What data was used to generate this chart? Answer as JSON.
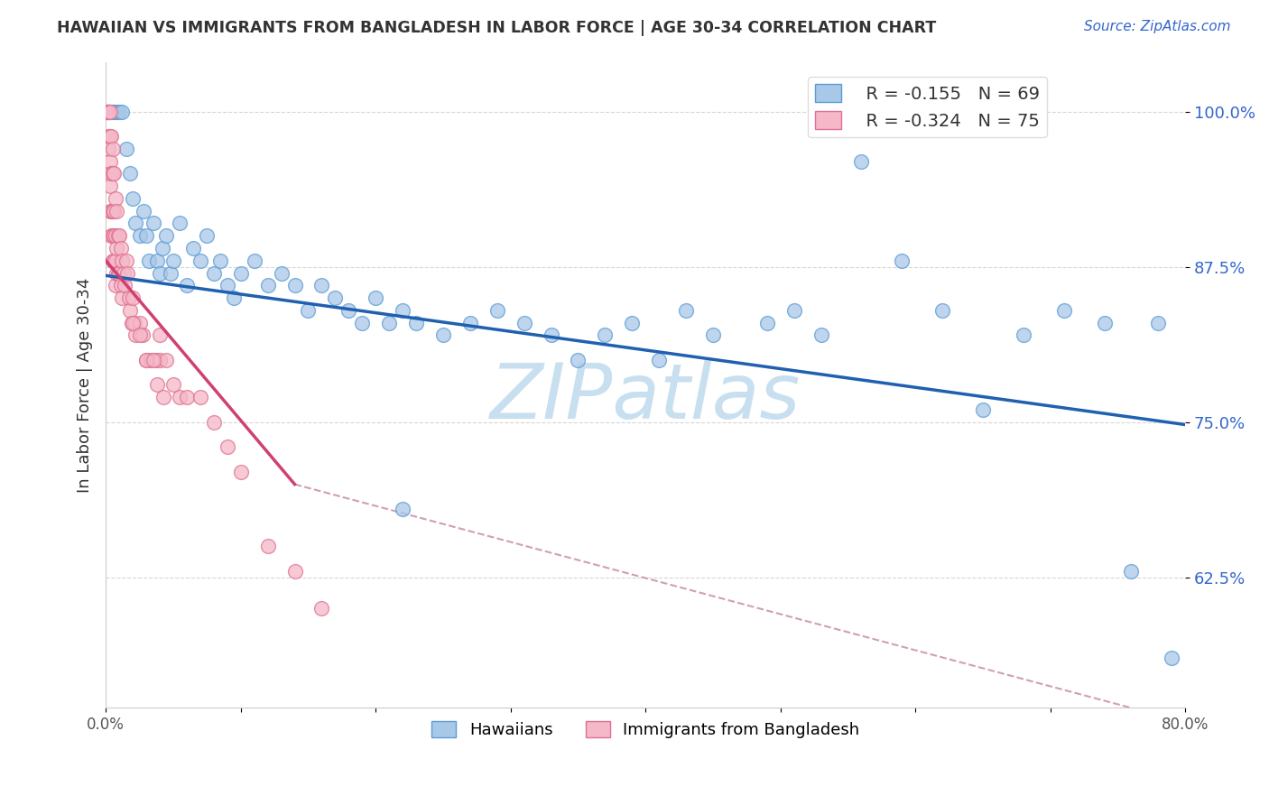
{
  "title": "HAWAIIAN VS IMMIGRANTS FROM BANGLADESH IN LABOR FORCE | AGE 30-34 CORRELATION CHART",
  "source_text": "Source: ZipAtlas.com",
  "ylabel": "In Labor Force | Age 30-34",
  "xlim": [
    0.0,
    0.8
  ],
  "ylim": [
    0.52,
    1.04
  ],
  "xticks": [
    0.0,
    0.1,
    0.2,
    0.3,
    0.4,
    0.5,
    0.6,
    0.7,
    0.8
  ],
  "xticklabels": [
    "0.0%",
    "",
    "",
    "",
    "",
    "",
    "",
    "",
    "80.0%"
  ],
  "yticks": [
    0.625,
    0.75,
    0.875,
    1.0
  ],
  "yticklabels": [
    "62.5%",
    "75.0%",
    "87.5%",
    "100.0%"
  ],
  "legend_r1": "R = -0.155",
  "legend_n1": "N = 69",
  "legend_r2": "R = -0.324",
  "legend_n2": "N = 75",
  "color_blue": "#a8c8e8",
  "color_pink": "#f4b8c8",
  "color_blue_edge": "#5b9bd5",
  "color_pink_edge": "#e07090",
  "color_blue_line": "#2060b0",
  "color_pink_line": "#d04070",
  "color_dashed": "#d0a0b0",
  "watermark": "ZIPatlas",
  "watermark_color": "#c8dff0",
  "blue_scatter_x": [
    0.003,
    0.005,
    0.006,
    0.008,
    0.01,
    0.012,
    0.015,
    0.018,
    0.02,
    0.022,
    0.025,
    0.028,
    0.03,
    0.032,
    0.035,
    0.038,
    0.04,
    0.042,
    0.045,
    0.048,
    0.05,
    0.055,
    0.06,
    0.065,
    0.07,
    0.075,
    0.08,
    0.085,
    0.09,
    0.095,
    0.1,
    0.11,
    0.12,
    0.13,
    0.14,
    0.15,
    0.16,
    0.17,
    0.18,
    0.19,
    0.2,
    0.21,
    0.22,
    0.23,
    0.25,
    0.27,
    0.29,
    0.31,
    0.33,
    0.35,
    0.37,
    0.39,
    0.41,
    0.43,
    0.45,
    0.49,
    0.51,
    0.53,
    0.56,
    0.59,
    0.62,
    0.65,
    0.68,
    0.71,
    0.74,
    0.76,
    0.78,
    0.79,
    0.22
  ],
  "blue_scatter_y": [
    1.0,
    1.0,
    1.0,
    1.0,
    1.0,
    1.0,
    0.97,
    0.95,
    0.93,
    0.91,
    0.9,
    0.92,
    0.9,
    0.88,
    0.91,
    0.88,
    0.87,
    0.89,
    0.9,
    0.87,
    0.88,
    0.91,
    0.86,
    0.89,
    0.88,
    0.9,
    0.87,
    0.88,
    0.86,
    0.85,
    0.87,
    0.88,
    0.86,
    0.87,
    0.86,
    0.84,
    0.86,
    0.85,
    0.84,
    0.83,
    0.85,
    0.83,
    0.84,
    0.83,
    0.82,
    0.83,
    0.84,
    0.83,
    0.82,
    0.8,
    0.82,
    0.83,
    0.8,
    0.84,
    0.82,
    0.83,
    0.84,
    0.82,
    0.96,
    0.88,
    0.84,
    0.76,
    0.82,
    0.84,
    0.83,
    0.63,
    0.83,
    0.56,
    0.68
  ],
  "pink_scatter_x": [
    0.001,
    0.001,
    0.001,
    0.002,
    0.002,
    0.002,
    0.002,
    0.002,
    0.003,
    0.003,
    0.003,
    0.003,
    0.003,
    0.004,
    0.004,
    0.004,
    0.004,
    0.005,
    0.005,
    0.005,
    0.005,
    0.005,
    0.006,
    0.006,
    0.006,
    0.006,
    0.007,
    0.007,
    0.007,
    0.007,
    0.008,
    0.008,
    0.008,
    0.009,
    0.009,
    0.01,
    0.01,
    0.011,
    0.011,
    0.012,
    0.012,
    0.013,
    0.014,
    0.015,
    0.016,
    0.017,
    0.018,
    0.019,
    0.02,
    0.021,
    0.022,
    0.025,
    0.027,
    0.03,
    0.033,
    0.037,
    0.04,
    0.045,
    0.05,
    0.055,
    0.06,
    0.07,
    0.08,
    0.09,
    0.1,
    0.12,
    0.14,
    0.16,
    0.02,
    0.025,
    0.03,
    0.035,
    0.038,
    0.04,
    0.043
  ],
  "pink_scatter_y": [
    1.0,
    1.0,
    1.0,
    1.0,
    1.0,
    1.0,
    0.98,
    0.97,
    1.0,
    0.98,
    0.96,
    0.94,
    0.92,
    0.98,
    0.95,
    0.92,
    0.9,
    0.97,
    0.95,
    0.92,
    0.9,
    0.88,
    0.95,
    0.92,
    0.9,
    0.88,
    0.93,
    0.9,
    0.88,
    0.86,
    0.92,
    0.89,
    0.87,
    0.9,
    0.87,
    0.9,
    0.87,
    0.89,
    0.86,
    0.88,
    0.85,
    0.87,
    0.86,
    0.88,
    0.87,
    0.85,
    0.84,
    0.83,
    0.85,
    0.83,
    0.82,
    0.83,
    0.82,
    0.8,
    0.8,
    0.8,
    0.8,
    0.8,
    0.78,
    0.77,
    0.77,
    0.77,
    0.75,
    0.73,
    0.71,
    0.65,
    0.63,
    0.6,
    0.83,
    0.82,
    0.8,
    0.8,
    0.78,
    0.82,
    0.77
  ],
  "blue_line_x0": 0.0,
  "blue_line_y0": 0.868,
  "blue_line_x1": 0.8,
  "blue_line_y1": 0.748,
  "pink_line_x0": 0.0,
  "pink_line_y0": 0.88,
  "pink_line_x1": 0.14,
  "pink_line_y1": 0.7,
  "dashed_line_x0": 0.14,
  "dashed_line_y0": 0.7,
  "dashed_line_x1": 0.76,
  "dashed_line_y1": 0.52
}
